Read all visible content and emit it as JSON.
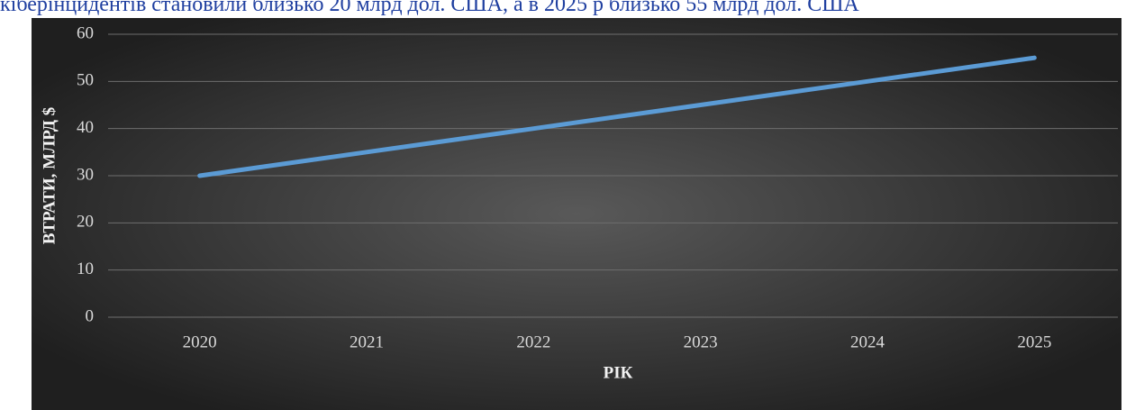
{
  "text": "кіберінцидентів становили близько 20 млрд дол. США, а в 2025 р близько 55 млрд дол. США",
  "chart_data": {
    "type": "line",
    "xlabel": "РІК",
    "ylabel": "ВТРАТИ, МЛРД $",
    "categories": [
      "2020",
      "2021",
      "2022",
      "2023",
      "2024",
      "2025"
    ],
    "values": [
      30,
      35,
      40,
      45,
      50,
      55
    ],
    "color": "#5b9bd5",
    "ylim": [
      0,
      60
    ],
    "yticks": [
      0,
      10,
      20,
      30,
      40,
      50,
      60
    ],
    "grid": true
  }
}
